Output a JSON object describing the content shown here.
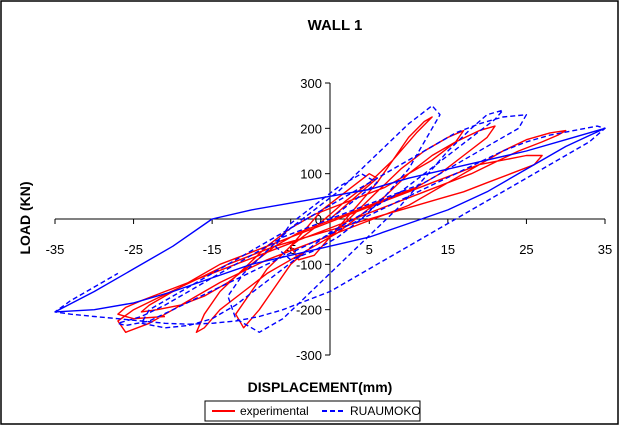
{
  "chart_data": {
    "type": "line",
    "title": "WALL 1",
    "xlabel": "DISPLACEMENT(mm)",
    "ylabel": "LOAD (KN)",
    "xlim": [
      -35,
      35
    ],
    "ylim": [
      -300,
      300
    ],
    "x_ticks": [
      "-35",
      "-25",
      "-15",
      "-5",
      "5",
      "15",
      "25",
      "35"
    ],
    "y_ticks": [
      "300",
      "200",
      "100",
      "0",
      "-100",
      "-200",
      "-300"
    ],
    "grid": false,
    "legend_position": "bottom",
    "series": [
      {
        "name": "experimental",
        "color": "#ff0000",
        "style": "solid",
        "x": [
          0,
          2,
          4,
          6,
          5,
          2,
          -1,
          -3,
          -5,
          -4,
          -2,
          0,
          2,
          4,
          6,
          8,
          10,
          12,
          13,
          11,
          8,
          5,
          2,
          0,
          -2,
          -5,
          -8,
          -10,
          -12,
          -11,
          -9,
          -7,
          -5,
          -3,
          0,
          3,
          6,
          9,
          12,
          15,
          17,
          16,
          13,
          10,
          7,
          4,
          1,
          -2,
          -5,
          -8,
          -11,
          -14,
          -16,
          -17,
          -16,
          -14,
          -11,
          -8,
          -5,
          -2,
          1,
          4,
          7,
          10,
          13,
          16,
          19,
          21,
          20,
          17,
          14,
          11,
          8,
          5,
          2,
          -1,
          -4,
          -7,
          -10,
          -13,
          -16,
          -19,
          -22,
          -24,
          -23,
          -20,
          -17,
          -14,
          -11,
          -8,
          -5,
          -2,
          1,
          4,
          7,
          10,
          13,
          16,
          19,
          22,
          25,
          27,
          26,
          23,
          20,
          17,
          14,
          11,
          8,
          5,
          2,
          -1,
          -4,
          -7,
          -10,
          -13,
          -16,
          -19,
          -22,
          -25,
          -27,
          -26,
          -23,
          -20,
          -17,
          -14,
          -11,
          -8,
          -5,
          -2,
          1,
          4,
          7,
          10,
          13,
          16,
          19,
          22,
          25,
          28,
          30,
          29,
          27,
          24,
          21,
          18,
          15,
          12,
          9,
          6,
          3,
          0,
          -3,
          -6,
          -9,
          -12,
          -15,
          -18,
          -21,
          -24,
          -26,
          -27,
          -25,
          -21
        ],
        "y": [
          0,
          30,
          60,
          90,
          100,
          60,
          20,
          -20,
          -60,
          -90,
          -80,
          -40,
          0,
          40,
          80,
          130,
          180,
          215,
          225,
          190,
          130,
          80,
          40,
          10,
          -20,
          -60,
          -110,
          -160,
          -210,
          -240,
          -200,
          -150,
          -100,
          -70,
          -40,
          10,
          60,
          110,
          150,
          180,
          195,
          170,
          130,
          100,
          70,
          50,
          30,
          10,
          -20,
          -60,
          -110,
          -160,
          -210,
          -250,
          -240,
          -200,
          -160,
          -120,
          -90,
          -60,
          -30,
          10,
          50,
          100,
          140,
          170,
          195,
          205,
          180,
          140,
          100,
          70,
          50,
          30,
          10,
          -10,
          -30,
          -60,
          -100,
          -140,
          -170,
          -190,
          -200,
          -205,
          -190,
          -160,
          -130,
          -100,
          -80,
          -60,
          -40,
          -20,
          0,
          20,
          40,
          60,
          80,
          100,
          120,
          130,
          140,
          140,
          120,
          100,
          80,
          60,
          45,
          30,
          15,
          0,
          -15,
          -30,
          -45,
          -60,
          -80,
          -100,
          -125,
          -150,
          -175,
          -200,
          -225,
          -250,
          -230,
          -200,
          -170,
          -140,
          -115,
          -90,
          -70,
          -50,
          -30,
          -10,
          10,
          30,
          60,
          90,
          120,
          150,
          175,
          190,
          195,
          185,
          170,
          150,
          125,
          100,
          80,
          60,
          40,
          20,
          0,
          -20,
          -40,
          -60,
          -80,
          -100,
          -120,
          -140,
          -160,
          -180,
          -195,
          -210,
          -220,
          -215
        ]
      },
      {
        "name": "RUAUMOKO",
        "color": "#0000ff",
        "style": "dashed",
        "x": [
          0,
          3,
          6,
          4,
          1,
          -2,
          -5,
          -7,
          -5,
          -2,
          1,
          4,
          7,
          10,
          12,
          14,
          13,
          10,
          7,
          4,
          1,
          -2,
          -5,
          -8,
          -11,
          -13,
          -12,
          -9,
          -6,
          -3,
          0,
          3,
          6,
          9,
          12,
          15,
          18,
          20,
          22,
          21,
          18,
          15,
          12,
          9,
          6,
          3,
          0,
          -3,
          -6,
          -9,
          -12,
          -15,
          -18,
          -21,
          -24,
          -23,
          -20,
          -17,
          -14,
          -11,
          -8,
          -5,
          -2,
          1,
          4,
          7,
          10,
          13,
          16,
          19,
          22,
          25,
          24,
          21,
          18,
          15,
          12,
          9,
          6,
          3,
          0,
          -3,
          -6,
          -9,
          -12,
          -15,
          -18,
          -21,
          -24,
          -27,
          -26,
          -23,
          -20,
          -17,
          -14,
          -11,
          -8,
          -5,
          -2,
          1,
          4,
          7,
          10,
          13,
          16,
          19,
          22,
          25,
          28,
          31,
          34,
          35,
          33,
          30,
          27,
          24,
          21,
          18,
          15,
          12,
          9,
          6,
          3,
          0,
          -3,
          -6,
          -9,
          -12,
          -15,
          -18,
          -21,
          -24,
          -27,
          -30,
          -33,
          -35,
          -33,
          -30,
          -27
        ],
        "y": [
          0,
          40,
          80,
          100,
          70,
          30,
          -10,
          -60,
          -90,
          -70,
          -40,
          0,
          50,
          110,
          170,
          230,
          250,
          210,
          160,
          110,
          60,
          20,
          -20,
          -70,
          -120,
          -170,
          -220,
          -250,
          -220,
          -170,
          -120,
          -70,
          -20,
          30,
          90,
          150,
          200,
          230,
          240,
          220,
          180,
          140,
          100,
          60,
          30,
          0,
          -30,
          -70,
          -110,
          -150,
          -190,
          -220,
          -235,
          -240,
          -230,
          -200,
          -170,
          -140,
          -110,
          -80,
          -50,
          -20,
          10,
          40,
          70,
          100,
          130,
          160,
          190,
          210,
          225,
          230,
          200,
          170,
          140,
          110,
          80,
          60,
          40,
          20,
          0,
          -20,
          -40,
          -70,
          -100,
          -130,
          -160,
          -190,
          -215,
          -230,
          -235,
          -225,
          -200,
          -175,
          -150,
          -125,
          -100,
          -75,
          -50,
          -25,
          0,
          25,
          50,
          75,
          100,
          125,
          150,
          170,
          185,
          195,
          205,
          200,
          170,
          140,
          110,
          80,
          50,
          20,
          -10,
          -40,
          -70,
          -100,
          -130,
          -160,
          -180,
          -200,
          -215,
          -225,
          -230,
          -232,
          -230,
          -225,
          -220,
          -215,
          -210,
          -205,
          -180,
          -150,
          -120
        ]
      },
      {
        "name": "",
        "color": "#0000ff",
        "style": "solid",
        "x": [
          -35,
          -30,
          -25,
          -20,
          -15,
          -10,
          -5,
          0,
          5,
          10,
          15,
          20,
          25,
          30,
          35,
          30,
          25,
          20,
          15,
          10,
          5,
          0,
          -5,
          -10,
          -15,
          -20,
          -25,
          -30,
          -35
        ],
        "y": [
          -205,
          -160,
          -110,
          -60,
          0,
          20,
          35,
          50,
          65,
          90,
          110,
          130,
          150,
          175,
          200,
          160,
          110,
          60,
          20,
          -10,
          -40,
          -60,
          -80,
          -100,
          -130,
          -160,
          -185,
          -200,
          -205
        ]
      }
    ]
  }
}
